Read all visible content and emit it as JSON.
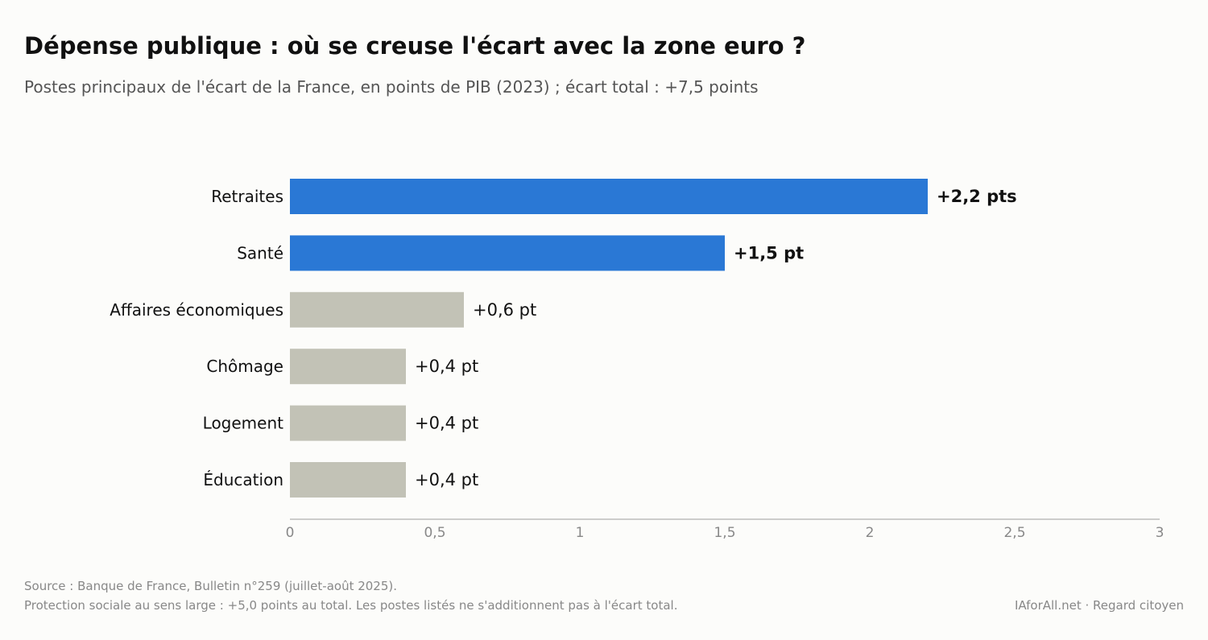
{
  "title": "Dépense publique : où se creuse l'écart avec la zone euro ?",
  "subtitle": "Postes principaux de l'écart de la France, en points de PIB (2023) ; écart total : +7,5 points",
  "footer": {
    "source": "Source : Banque de France, Bulletin n°259 (juillet-août 2025).",
    "note": "Protection sociale au sens large : +5,0 points au total. Les postes listés ne s'additionnent pas à l'écart total.",
    "credit": "IAforAll.net · Regard citoyen"
  },
  "chart_data": {
    "type": "bar",
    "orientation": "horizontal",
    "categories": [
      "Retraites",
      "Santé",
      "Affaires économiques",
      "Chômage",
      "Logement",
      "Éducation"
    ],
    "values": [
      2.2,
      1.5,
      0.6,
      0.4,
      0.4,
      0.4
    ],
    "data_labels": [
      "+2,2 pts",
      "+1,5 pt",
      "+0,6 pt",
      "+0,4 pt",
      "+0,4 pt",
      "+0,4 pt"
    ],
    "highlighted": [
      true,
      true,
      false,
      false,
      false,
      false
    ],
    "xlim": [
      0,
      3
    ],
    "xticks": [
      0,
      0.5,
      1,
      1.5,
      2,
      2.5,
      3
    ],
    "xtick_labels": [
      "0",
      "0,5",
      "1",
      "1,5",
      "2",
      "2,5",
      "3"
    ],
    "grid": false,
    "colors": {
      "highlight": "#2a78d5",
      "other": "#c2c2b6",
      "axis": "#bbbbbb",
      "tick_text": "#888888"
    }
  }
}
